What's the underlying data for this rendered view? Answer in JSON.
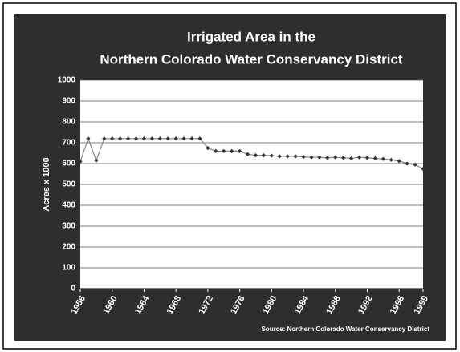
{
  "chart_data": {
    "type": "line",
    "title": [
      "Irrigated Area in the",
      "Northern Colorado Water Conservancy District"
    ],
    "y_label": "Acres x 1000",
    "source": "Source:  Northern Colorado Water Conservancy District",
    "x": [
      1956,
      1957,
      1958,
      1959,
      1960,
      1961,
      1962,
      1963,
      1964,
      1965,
      1966,
      1967,
      1968,
      1969,
      1970,
      1971,
      1972,
      1973,
      1974,
      1975,
      1976,
      1977,
      1978,
      1979,
      1980,
      1981,
      1982,
      1983,
      1984,
      1985,
      1986,
      1987,
      1988,
      1989,
      1990,
      1991,
      1992,
      1993,
      1994,
      1995,
      1996,
      1997,
      1998,
      1999
    ],
    "values": [
      610,
      720,
      615,
      720,
      720,
      720,
      720,
      720,
      720,
      720,
      720,
      720,
      720,
      720,
      720,
      720,
      675,
      660,
      660,
      660,
      660,
      645,
      640,
      640,
      638,
      635,
      635,
      635,
      632,
      630,
      630,
      628,
      630,
      628,
      625,
      630,
      628,
      625,
      622,
      618,
      612,
      600,
      595,
      575
    ],
    "color": "#888888",
    "marker_color": "#333333",
    "xlim": [
      1956,
      1999
    ],
    "xticks": [
      1956,
      1960,
      1964,
      1968,
      1972,
      1976,
      1980,
      1984,
      1988,
      1992,
      1996,
      1999
    ],
    "ylim": [
      0,
      1000
    ],
    "yticks": [
      0,
      100,
      200,
      300,
      400,
      500,
      600,
      700,
      800,
      900,
      1000
    ],
    "grid": true
  }
}
